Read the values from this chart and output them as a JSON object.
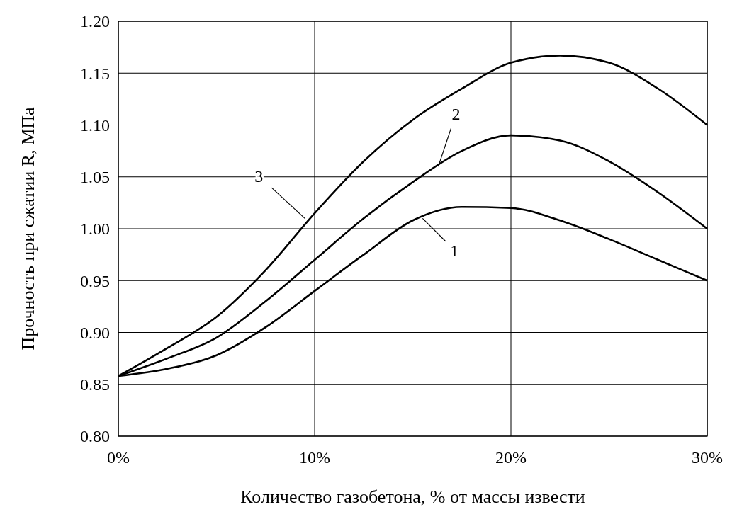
{
  "chart_data": {
    "type": "line",
    "xlabel": "Количество газобетона, % от массы извести",
    "ylabel": "Прочность при сжатии R, МПа",
    "x": [
      0,
      2.5,
      5,
      7.5,
      10,
      12.5,
      15,
      17.5,
      20,
      22.5,
      25,
      27.5,
      30
    ],
    "series": [
      {
        "color": "#000000",
        "values": [
          0.858,
          0.865,
          0.878,
          0.905,
          0.94,
          0.975,
          1.008,
          1.021,
          1.02,
          1.008,
          0.99,
          0.97,
          0.95
        ]
      },
      {
        "color": "#000000",
        "values": [
          0.858,
          0.875,
          0.895,
          0.93,
          0.97,
          1.01,
          1.045,
          1.075,
          1.09,
          1.085,
          1.065,
          1.035,
          1.0
        ]
      },
      {
        "color": "#000000",
        "values": [
          0.858,
          0.885,
          0.915,
          0.96,
          1.015,
          1.065,
          1.105,
          1.135,
          1.16,
          1.167,
          1.16,
          1.135,
          1.1
        ]
      }
    ],
    "annotations": [
      {
        "text": "1",
        "x": 15.5,
        "y": 1.01
      },
      {
        "text": "2",
        "x": 16.3,
        "y": 1.06
      },
      {
        "text": "3",
        "x": 9.5,
        "y": 1.01
      }
    ],
    "xlim": [
      0,
      30
    ],
    "xticks": [
      {
        "value": 0,
        "label": "0%"
      },
      {
        "value": 10,
        "label": "10%"
      },
      {
        "value": 20,
        "label": "20%"
      },
      {
        "value": 30,
        "label": "30%"
      }
    ],
    "ylim": [
      0.8,
      1.2
    ],
    "yticks": [
      {
        "value": 0.8,
        "label": "0.80"
      },
      {
        "value": 0.85,
        "label": "0.85"
      },
      {
        "value": 0.9,
        "label": "0.90"
      },
      {
        "value": 0.95,
        "label": "0.95"
      },
      {
        "value": 1.0,
        "label": "1.00"
      },
      {
        "value": 1.05,
        "label": "1.05"
      },
      {
        "value": 1.1,
        "label": "1.10"
      },
      {
        "value": 1.15,
        "label": "1.15"
      },
      {
        "value": 1.2,
        "label": "1.20"
      }
    ],
    "grid": true,
    "marker": "none",
    "line_style": "solid"
  }
}
